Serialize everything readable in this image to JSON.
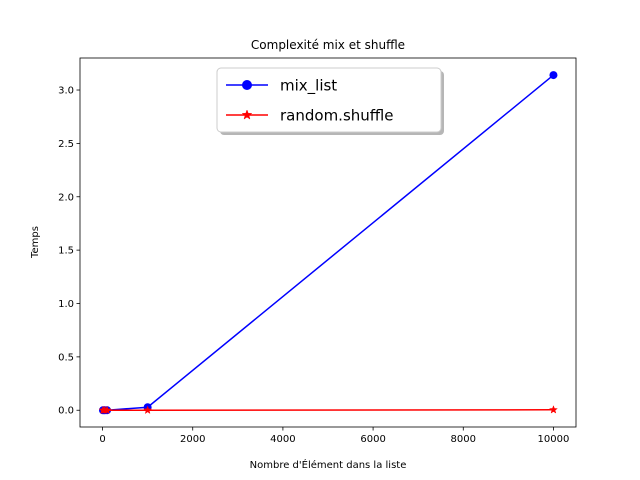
{
  "chart_data": {
    "type": "line",
    "title": "Complexité mix et shuffle",
    "xlabel": "Nombre d'Élément dans la liste",
    "ylabel": "Temps",
    "xlim": [
      -500,
      10500
    ],
    "ylim": [
      -0.157,
      3.3
    ],
    "xticks": [
      0,
      2000,
      4000,
      6000,
      8000,
      10000
    ],
    "xtick_labels": [
      "0",
      "2000",
      "4000",
      "6000",
      "8000",
      "10000"
    ],
    "yticks": [
      0.0,
      0.5,
      1.0,
      1.5,
      2.0,
      2.5,
      3.0
    ],
    "ytick_labels": [
      "0.0",
      "0.5",
      "1.0",
      "1.5",
      "2.0",
      "2.5",
      "3.0"
    ],
    "grid": false,
    "legend_position": "top-center",
    "series": [
      {
        "name": "mix_list",
        "color": "#0000ff",
        "marker": "circle",
        "x": [
          10,
          50,
          100,
          1000,
          10000
        ],
        "y": [
          0.0,
          0.0,
          0.0003,
          0.028,
          3.14
        ]
      },
      {
        "name": "random.shuffle",
        "color": "#ff0000",
        "marker": "star",
        "x": [
          10,
          50,
          100,
          1000,
          10000
        ],
        "y": [
          0.0,
          0.0,
          0.0,
          0.0004,
          0.004
        ]
      }
    ]
  }
}
